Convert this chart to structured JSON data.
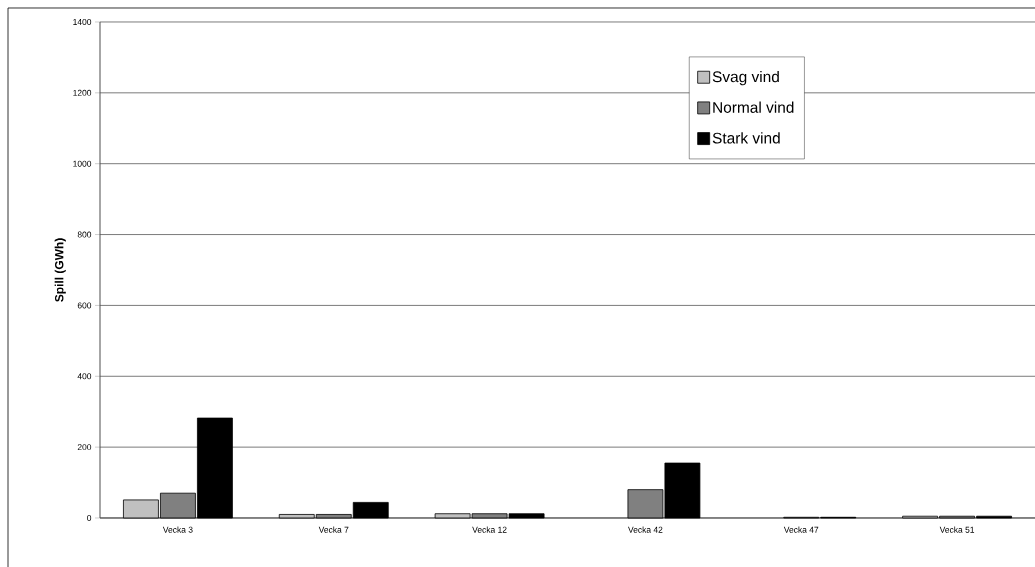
{
  "chart_data": {
    "type": "bar",
    "ylabel": "Spill (GWh)",
    "categories": [
      "Vecka 3",
      "Vecka 7",
      "Vecka 12",
      "Vecka 42",
      "Vecka 47",
      "Vecka 51"
    ],
    "series": [
      {
        "name": "Svag vind",
        "color": "#c0c0c0",
        "values": [
          51,
          10,
          12,
          null,
          null,
          5
        ]
      },
      {
        "name": "Normal vind",
        "color": "#808080",
        "values": [
          70,
          10,
          12,
          80,
          2,
          5
        ]
      },
      {
        "name": "Stark vind",
        "color": "#000000",
        "values": [
          282,
          44,
          12,
          155,
          2,
          5
        ]
      }
    ],
    "ylim": [
      0,
      1400
    ],
    "yticks": [
      0,
      200,
      400,
      600,
      800,
      1000,
      1200,
      1400
    ],
    "grid": "y",
    "legend": "top right"
  }
}
